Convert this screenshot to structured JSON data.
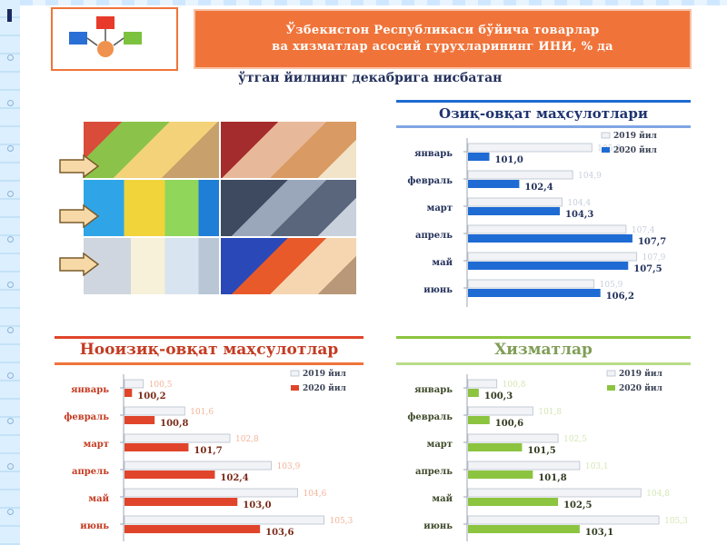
{
  "header": {
    "title_line1": "Ўзбекистон Республикаси бўйича товарлар",
    "title_line2": "ва хизматлар асосий гуруҳларининг ИНИ, % да"
  },
  "subtitle": "ўтган йилнинг декабрига нисбатан",
  "colors": {
    "header_orange": "#f0743a",
    "blue_2020": "#1f6bd4",
    "red_2020": "#e0452b",
    "green_2020": "#8cc440",
    "prior_fill": "#f1f3f6"
  },
  "chart_data": [
    {
      "id": "food",
      "type": "bar",
      "orientation": "horizontal",
      "title": "Озиқ-овқат маҳсулотлари",
      "categories": [
        "январь",
        "февраль",
        "март",
        "апрель",
        "май",
        "июнь"
      ],
      "series": [
        {
          "name": "2019 йил",
          "values": [
            105.8,
            104.9,
            104.4,
            107.4,
            107.9,
            105.9
          ],
          "labels": [
            "105,8",
            "104,9",
            "104,4",
            "107,4",
            "107,9",
            "105,9"
          ]
        },
        {
          "name": "2020 йил",
          "values": [
            101.0,
            102.4,
            104.3,
            107.7,
            107.5,
            106.2
          ],
          "labels": [
            "101,0",
            "102,4",
            "104,3",
            "107,7",
            "107,5",
            "106,2"
          ]
        }
      ],
      "xlim": [
        100,
        108
      ],
      "legend_position": "top-right",
      "grid": false
    },
    {
      "id": "nonfood",
      "type": "bar",
      "orientation": "horizontal",
      "title": "Нооизиқ-овқат маҳсулотлар",
      "categories": [
        "январь",
        "февраль",
        "март",
        "апрель",
        "май",
        "июнь"
      ],
      "series": [
        {
          "name": "2019 йил",
          "values": [
            100.5,
            101.6,
            102.8,
            103.9,
            104.6,
            105.3
          ],
          "labels": [
            "100,5",
            "101,6",
            "102,8",
            "103,9",
            "104,6",
            "105,3"
          ]
        },
        {
          "name": "2020 йил",
          "values": [
            100.2,
            100.8,
            101.7,
            102.4,
            103.0,
            103.6
          ],
          "labels": [
            "100,2",
            "100,8",
            "101,7",
            "102,4",
            "103,0",
            "103,6"
          ]
        }
      ],
      "xlim": [
        100,
        105.6
      ],
      "legend_position": "top-right",
      "grid": false
    },
    {
      "id": "services",
      "type": "bar",
      "orientation": "horizontal",
      "title": "Хизматлар",
      "categories": [
        "январь",
        "февраль",
        "март",
        "апрель",
        "май",
        "июнь"
      ],
      "series": [
        {
          "name": "2019 йил",
          "values": [
            100.8,
            101.8,
            102.5,
            103.1,
            104.8,
            105.3
          ],
          "labels": [
            "100,8",
            "101,8",
            "102,5",
            "103,1",
            "104,8",
            "105,3"
          ]
        },
        {
          "name": "2020 йил",
          "values": [
            100.3,
            100.6,
            101.5,
            101.8,
            102.5,
            103.1
          ],
          "labels": [
            "100,3",
            "100,6",
            "101,5",
            "101,8",
            "102,5",
            "103,1"
          ]
        }
      ],
      "xlim": [
        100,
        105.6
      ],
      "legend_position": "top-right",
      "grid": false
    }
  ]
}
